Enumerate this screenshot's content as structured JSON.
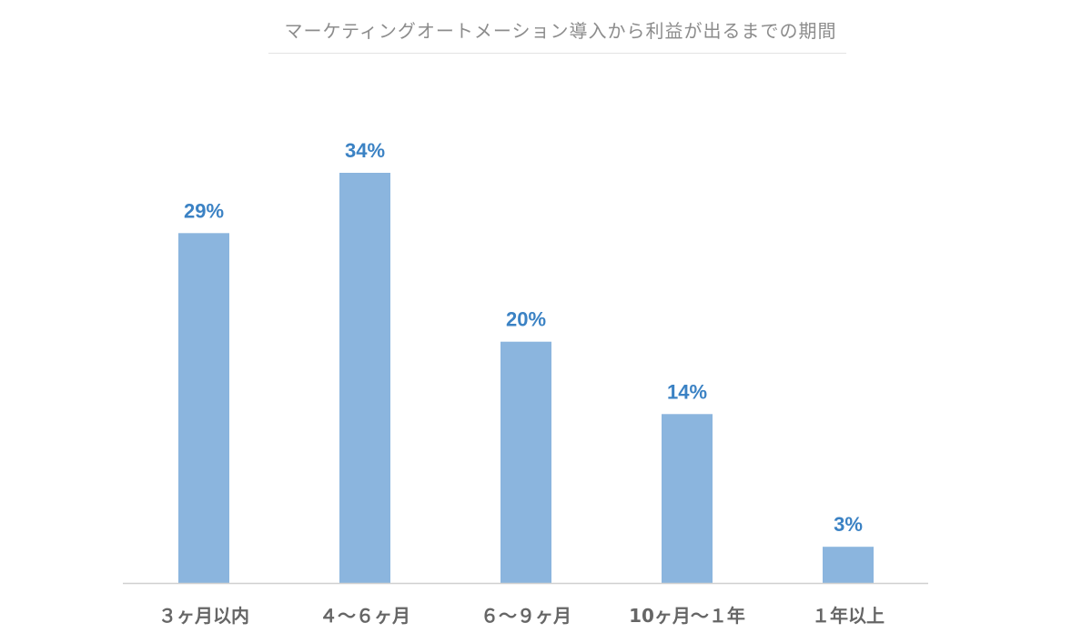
{
  "chart_data": {
    "type": "bar",
    "title": "マーケティングオートメーション導入から利益が出るまでの期間",
    "categories": [
      "３ヶ月以内",
      "４～６ヶ月",
      "６～９ヶ月",
      "10ヶ月～１年",
      "１年以上"
    ],
    "values": [
      29,
      34,
      20,
      14,
      3
    ],
    "value_labels": [
      "29%",
      "34%",
      "20%",
      "14%",
      "3%"
    ],
    "unit": "%",
    "ylim": [
      0,
      34
    ],
    "grid": false,
    "legend": "none",
    "colors": {
      "bar": "#8bb5de",
      "value_label": "#3b82c4",
      "category_label": "#666666",
      "title": "#8c8c8c"
    }
  }
}
